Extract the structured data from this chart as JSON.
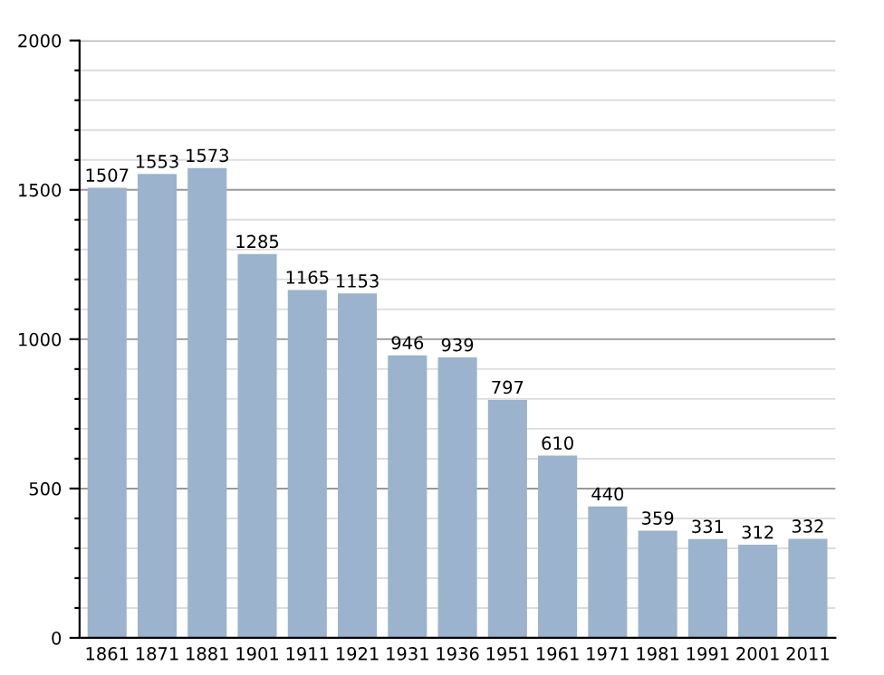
{
  "chart_data": {
    "type": "bar",
    "categories": [
      "1861",
      "1871",
      "1881",
      "1901",
      "1911",
      "1921",
      "1931",
      "1936",
      "1951",
      "1961",
      "1971",
      "1981",
      "1991",
      "2001",
      "2011"
    ],
    "values": [
      1507,
      1553,
      1573,
      1285,
      1165,
      1153,
      946,
      939,
      797,
      610,
      440,
      359,
      331,
      312,
      332
    ],
    "color": "#9bb3cc",
    "ylim": [
      0,
      2000
    ],
    "yticks": [
      0,
      {
        "value": 100,
        "label": null
      },
      {
        "value": 200,
        "label": null
      },
      {
        "value": 300,
        "label": null
      },
      {
        "value": 400,
        "label": null
      },
      500,
      {
        "value": 600,
        "label": null
      },
      {
        "value": 700,
        "label": null
      },
      {
        "value": 800,
        "label": null
      },
      {
        "value": 900,
        "label": null
      },
      1000,
      {
        "value": 1100,
        "label": null
      },
      {
        "value": 1200,
        "label": null
      },
      {
        "value": 1300,
        "label": null
      },
      {
        "value": 1400,
        "label": null
      },
      1500,
      {
        "value": 1600,
        "label": null
      },
      {
        "value": 1700,
        "label": null
      },
      {
        "value": 1800,
        "label": null
      },
      {
        "value": 1900,
        "label": null
      },
      2000
    ],
    "grid": "y",
    "data_labels": true
  }
}
